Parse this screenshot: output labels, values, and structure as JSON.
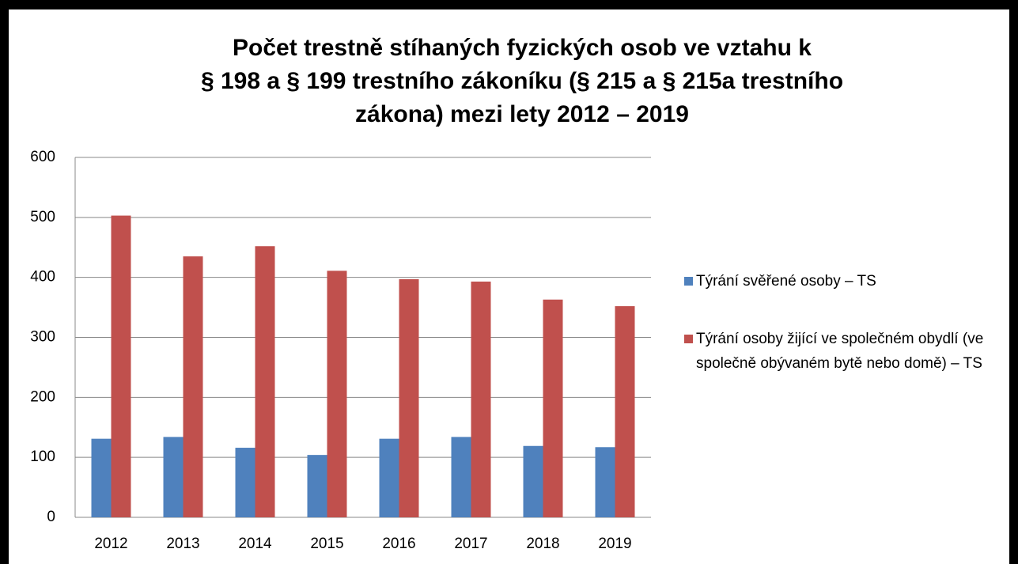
{
  "chart_data": {
    "type": "bar",
    "title": [
      "Počet trestně stíhaných fyzických osob ve vztahu k",
      "§ 198 a § 199 trestního zákoníku (§ 215 a § 215a trestního",
      "zákona) mezi lety 2012 – 2019"
    ],
    "categories": [
      "2012",
      "2013",
      "2014",
      "2015",
      "2016",
      "2017",
      "2018",
      "2019"
    ],
    "series": [
      {
        "name": "Týrání svěřené osoby – TS",
        "color": "#4f81bd",
        "values": [
          131,
          134,
          116,
          104,
          131,
          134,
          119,
          117
        ]
      },
      {
        "name": "Týrání osoby žijící ve společném obydlí (ve společně obývaném bytě nebo domě) – TS",
        "color": "#c0504d",
        "values": [
          503,
          435,
          452,
          411,
          397,
          393,
          363,
          352
        ]
      }
    ],
    "ylim": [
      0,
      600
    ],
    "yticks": [
      0,
      100,
      200,
      300,
      400,
      500,
      600
    ],
    "grid": true,
    "legend": "right"
  }
}
